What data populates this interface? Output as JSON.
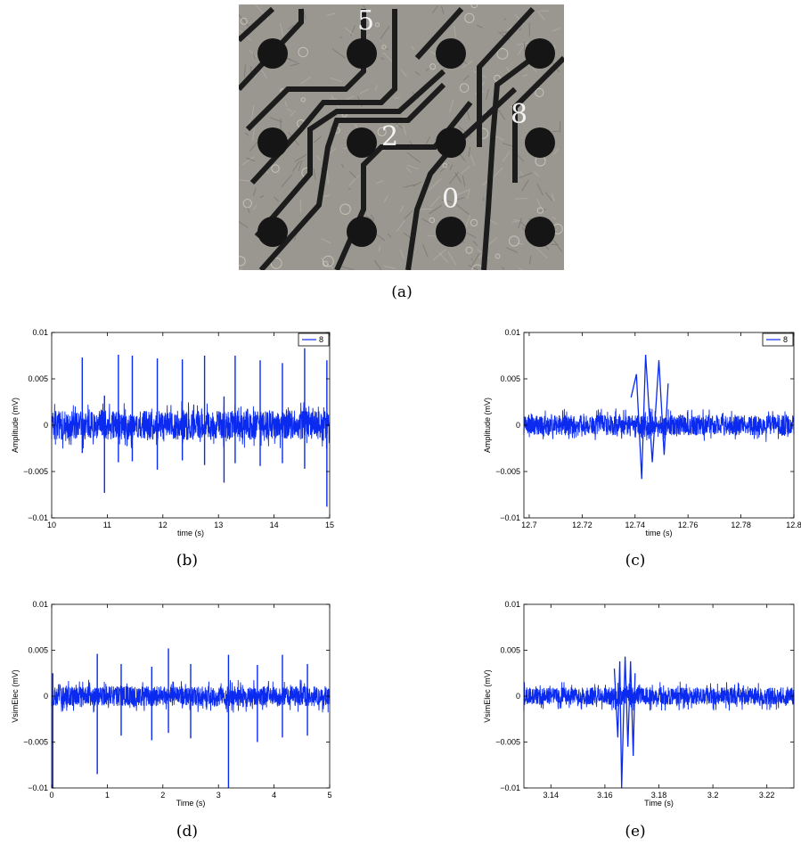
{
  "photo": {
    "electrode_labels": [
      "5",
      "2",
      "8",
      "0"
    ],
    "colors": {
      "background": "#9a9790",
      "electrode": "#151515",
      "trace": "#1c1c1c",
      "label": "#f2f2f2"
    }
  },
  "captions": {
    "a": "(a)",
    "b": "(b)",
    "c": "(c)",
    "d": "(d)",
    "e": "(e)"
  },
  "chart_data": [
    {
      "id": "b",
      "type": "line",
      "color": "#0a2af0",
      "xlabel": "time (s)",
      "ylabel": "Amplitude (mV)",
      "xlim": [
        10,
        15
      ],
      "ylim": [
        -0.01,
        0.01
      ],
      "xticks": [
        "10",
        "11",
        "12",
        "13",
        "14",
        "15"
      ],
      "xtick_values": [
        10,
        11,
        12,
        13,
        14,
        15
      ],
      "yticks": [
        "0.01",
        "0.005",
        "0",
        "−0.005",
        "−0.01"
      ],
      "ytick_values": [
        0.01,
        0.005,
        0,
        -0.005,
        -0.01
      ],
      "legend": [
        "8"
      ],
      "legend_position": "top-right",
      "noise_band": 0.0026,
      "spikes": [
        {
          "x": 10.55,
          "up": 0.0073,
          "down": -0.003
        },
        {
          "x": 10.95,
          "up": 0.0032,
          "down": -0.0073
        },
        {
          "x": 11.2,
          "up": 0.0076,
          "down": -0.004
        },
        {
          "x": 11.45,
          "up": 0.0075,
          "down": -0.0039
        },
        {
          "x": 11.9,
          "up": 0.0072,
          "down": -0.0048
        },
        {
          "x": 12.35,
          "up": 0.0071,
          "down": -0.0038
        },
        {
          "x": 12.75,
          "up": 0.0075,
          "down": -0.0043
        },
        {
          "x": 13.1,
          "up": 0.0031,
          "down": -0.0062
        },
        {
          "x": 13.3,
          "up": 0.0075,
          "down": -0.0041
        },
        {
          "x": 13.75,
          "up": 0.007,
          "down": -0.0044
        },
        {
          "x": 14.15,
          "up": 0.0067,
          "down": -0.0041
        },
        {
          "x": 14.55,
          "up": 0.0083,
          "down": -0.0047
        },
        {
          "x": 14.95,
          "up": 0.007,
          "down": -0.0088
        }
      ]
    },
    {
      "id": "c",
      "type": "line",
      "color": "#0a2af0",
      "xlabel": "time (s)",
      "ylabel": "Amplitude (mV)",
      "xlim": [
        12.698,
        12.8
      ],
      "ylim": [
        -0.01,
        0.01
      ],
      "xticks": [
        "12.7",
        "12.72",
        "12.74",
        "12.76",
        "12.78",
        "12.8"
      ],
      "xtick_values": [
        12.7,
        12.72,
        12.74,
        12.76,
        12.78,
        12.8
      ],
      "yticks": [
        "0.01",
        "0.005",
        "0",
        "−0.005",
        "−0.01"
      ],
      "ytick_values": [
        0.01,
        0.005,
        0,
        -0.005,
        -0.01
      ],
      "legend": [
        "8"
      ],
      "legend_position": "top-right",
      "noise_band": 0.0018,
      "burst": [
        {
          "x": 12.7385,
          "y": 0.003
        },
        {
          "x": 12.7405,
          "y": 0.0055
        },
        {
          "x": 12.7425,
          "y": -0.0058
        },
        {
          "x": 12.744,
          "y": 0.0076
        },
        {
          "x": 12.7465,
          "y": -0.004
        },
        {
          "x": 12.749,
          "y": 0.007
        },
        {
          "x": 12.751,
          "y": -0.0032
        },
        {
          "x": 12.7525,
          "y": 0.0045
        }
      ]
    },
    {
      "id": "d",
      "type": "line",
      "color": "#0a2af0",
      "xlabel": "Time (s)",
      "ylabel": "VsimElec (mV)",
      "xlim": [
        0,
        5
      ],
      "ylim": [
        -0.01,
        0.01
      ],
      "xticks": [
        "0",
        "1",
        "2",
        "3",
        "4",
        "5"
      ],
      "xtick_values": [
        0,
        1,
        2,
        3,
        4,
        5
      ],
      "yticks": [
        "0.01",
        "0.005",
        "0",
        "−0.005",
        "−0.01"
      ],
      "ytick_values": [
        0.01,
        0.005,
        0,
        -0.005,
        -0.01
      ],
      "noise_band": 0.0018,
      "spikes": [
        {
          "x": 0.02,
          "up": 0.0025,
          "down": -0.0105
        },
        {
          "x": 0.82,
          "up": 0.0046,
          "down": -0.0085
        },
        {
          "x": 1.25,
          "up": 0.0035,
          "down": -0.0043
        },
        {
          "x": 1.8,
          "up": 0.0032,
          "down": -0.0048
        },
        {
          "x": 2.1,
          "up": 0.0052,
          "down": -0.004
        },
        {
          "x": 2.5,
          "up": 0.0035,
          "down": -0.0046
        },
        {
          "x": 3.18,
          "up": 0.0045,
          "down": -0.0105
        },
        {
          "x": 3.7,
          "up": 0.0034,
          "down": -0.005
        },
        {
          "x": 4.15,
          "up": 0.0045,
          "down": -0.0045
        },
        {
          "x": 4.6,
          "up": 0.0035,
          "down": -0.0043
        }
      ]
    },
    {
      "id": "e",
      "type": "line",
      "color": "#0a2af0",
      "xlabel": "Time (s)",
      "ylabel": "VsimElec (mV)",
      "xlim": [
        3.13,
        3.23
      ],
      "ylim": [
        -0.01,
        0.01
      ],
      "xticks": [
        "3.14",
        "3.16",
        "3.18",
        "3.2",
        "3.22"
      ],
      "xtick_values": [
        3.14,
        3.16,
        3.18,
        3.2,
        3.22
      ],
      "yticks": [
        "0.01",
        "0.005",
        "0",
        "−0.005",
        "−0.01"
      ],
      "ytick_values": [
        0.01,
        0.005,
        0,
        -0.005,
        -0.01
      ],
      "noise_band": 0.0016,
      "burst": [
        {
          "x": 3.1635,
          "y": 0.003
        },
        {
          "x": 3.1648,
          "y": -0.0045
        },
        {
          "x": 3.1655,
          "y": 0.0038
        },
        {
          "x": 3.1662,
          "y": -0.0105
        },
        {
          "x": 3.1675,
          "y": 0.0043
        },
        {
          "x": 3.1685,
          "y": -0.0055
        },
        {
          "x": 3.1695,
          "y": 0.0038
        },
        {
          "x": 3.1705,
          "y": -0.0065
        },
        {
          "x": 3.1712,
          "y": 0.0025
        }
      ]
    }
  ]
}
